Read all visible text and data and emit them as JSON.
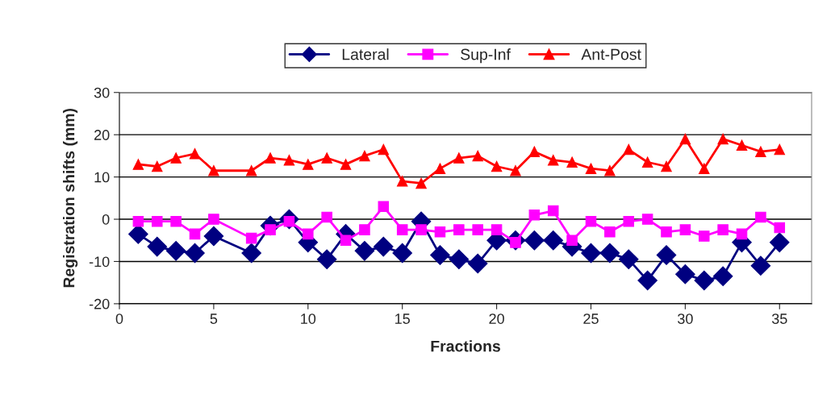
{
  "chart_data": {
    "type": "line",
    "xlabel": "Fractions",
    "ylabel": "Registration shifts (mm)",
    "x": [
      1,
      2,
      3,
      4,
      5,
      7,
      8,
      9,
      10,
      11,
      12,
      13,
      14,
      15,
      16,
      17,
      18,
      19,
      20,
      21,
      22,
      23,
      24,
      25,
      26,
      27,
      28,
      29,
      30,
      31,
      32,
      33,
      34,
      35
    ],
    "series": [
      {
        "name": "Lateral",
        "color": "#000080",
        "marker": "diamond",
        "values": [
          -3.5,
          -6.5,
          -7.5,
          -8,
          -4,
          -8,
          -1.5,
          0,
          -5.5,
          -9.5,
          -3.5,
          -7.5,
          -6.5,
          -8,
          -0.5,
          -8.5,
          -9.5,
          -10.5,
          -5,
          -5,
          -5,
          -5,
          -6.5,
          -8,
          -8,
          -9.5,
          -14.5,
          -8.5,
          -13,
          -14.5,
          -13.5,
          -5.5,
          -11,
          -5.5
        ]
      },
      {
        "name": "Sup-Inf",
        "color": "#ff00ff",
        "marker": "square",
        "values": [
          -0.5,
          -0.5,
          -0.5,
          -3.5,
          0,
          -4.5,
          -2.5,
          -0.5,
          -3.5,
          0.5,
          -5,
          -2.5,
          3,
          -2.5,
          -2.5,
          -3,
          -2.5,
          -2.5,
          -2.5,
          -5.5,
          1,
          2,
          -5,
          -0.5,
          -3,
          -0.5,
          0,
          -3,
          -2.5,
          -4,
          -2.5,
          -3.5,
          0.5,
          -2
        ]
      },
      {
        "name": "Ant-Post",
        "color": "#ff0000",
        "marker": "triangle",
        "values": [
          13,
          12.5,
          14.5,
          15.5,
          11.5,
          11.5,
          14.5,
          14,
          13,
          14.5,
          13,
          15,
          16.5,
          9,
          8.5,
          12,
          14.5,
          15,
          12.5,
          11.5,
          16,
          14,
          13.5,
          12,
          11.5,
          16.5,
          13.5,
          12.5,
          19,
          12,
          19,
          17.5,
          16,
          16.5
        ]
      }
    ],
    "xlim": [
      0,
      36.7
    ],
    "xticks": [
      0,
      5,
      10,
      15,
      20,
      25,
      30,
      35
    ],
    "ylim": [
      -20,
      30
    ],
    "yticks": [
      -20,
      -10,
      0,
      10,
      20,
      30
    ],
    "grid": "y",
    "legend": "top",
    "line_style": "solid"
  }
}
